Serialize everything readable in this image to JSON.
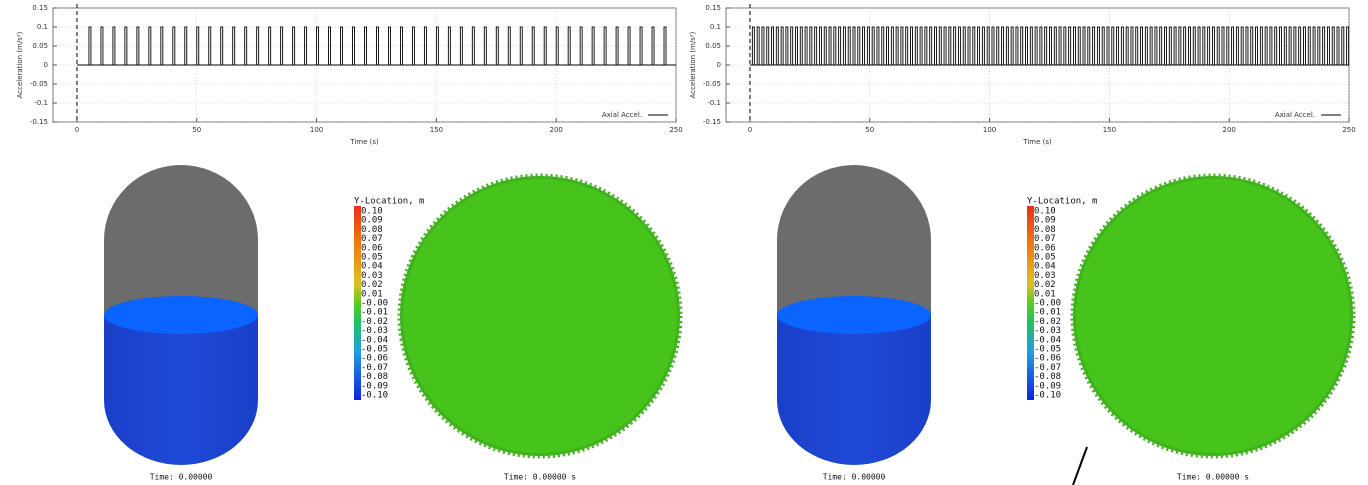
{
  "chart_data": [
    {
      "type": "pulse",
      "xlabel": "Time (s)",
      "ylabel": "Acceleration (m/s²)",
      "xlim": [
        -10,
        250
      ],
      "ylim": [
        -0.15,
        0.15
      ],
      "xticks": [
        0,
        50,
        100,
        150,
        200,
        250
      ],
      "yticks": [
        0.15,
        0.1,
        0.05,
        0,
        -0.05,
        -0.1,
        -0.15
      ],
      "grid": true,
      "legend": "lower right",
      "series": [
        {
          "name": "Axial Accel.",
          "color": "#000000",
          "x": [
            5,
            10,
            15,
            20,
            25,
            30,
            35,
            40,
            45,
            50,
            55,
            60,
            65,
            70,
            75,
            80,
            85,
            90,
            95,
            100,
            105,
            110,
            115,
            120,
            125,
            130,
            135,
            140,
            145,
            150,
            155,
            160,
            165,
            170,
            175,
            180,
            185,
            190,
            195,
            200,
            205,
            210,
            215,
            220,
            225,
            230,
            235,
            240,
            245
          ],
          "values": [
            0.1,
            0.1,
            0.1,
            0.1,
            0.1,
            0.1,
            0.1,
            0.1,
            0.1,
            0.1,
            0.1,
            0.1,
            0.1,
            0.1,
            0.1,
            0.1,
            0.1,
            0.1,
            0.1,
            0.1,
            0.1,
            0.1,
            0.1,
            0.1,
            0.1,
            0.1,
            0.1,
            0.1,
            0.1,
            0.1,
            0.1,
            0.1,
            0.1,
            0.1,
            0.1,
            0.1,
            0.1,
            0.1,
            0.1,
            0.1,
            0.1,
            0.1,
            0.1,
            0.1,
            0.1,
            0.1,
            0.1,
            0.1,
            0.1
          ]
        }
      ]
    },
    {
      "type": "pulse",
      "xlabel": "Time (s)",
      "ylabel": "Acceleration (m/s²)",
      "xlim": [
        -10,
        250
      ],
      "ylim": [
        -0.15,
        0.15
      ],
      "xticks": [
        0,
        50,
        100,
        150,
        200,
        250
      ],
      "yticks": [
        0.15,
        0.1,
        0.05,
        0,
        -0.05,
        -0.1,
        -0.15
      ],
      "grid": true,
      "legend": "lower right",
      "series": [
        {
          "name": "Axial Accel.",
          "color": "#000000",
          "x": [
            1,
            3,
            5,
            7,
            9,
            11,
            13,
            15,
            17,
            19,
            21,
            23,
            25,
            27,
            29,
            31,
            33,
            35,
            37,
            39,
            41,
            43,
            45,
            47,
            49,
            51,
            53,
            55,
            57,
            59,
            61,
            63,
            65,
            67,
            69,
            71,
            73,
            75,
            77,
            79,
            81,
            83,
            85,
            87,
            89,
            91,
            93,
            95,
            97,
            99,
            101,
            103,
            105,
            107,
            109,
            111,
            113,
            115,
            117,
            119,
            121,
            123,
            125,
            127,
            129,
            131,
            133,
            135,
            137,
            139,
            141,
            143,
            145,
            147,
            149,
            151,
            153,
            155,
            157,
            159,
            161,
            163,
            165,
            167,
            169,
            171,
            173,
            175,
            177,
            179,
            181,
            183,
            185,
            187,
            189,
            191,
            193,
            195,
            197,
            199,
            201,
            203,
            205,
            207,
            209,
            211,
            213,
            215,
            217,
            219,
            221,
            223,
            225,
            227,
            229,
            231,
            233,
            235,
            237,
            239,
            241,
            243,
            245,
            247,
            249
          ],
          "values": [
            0.1,
            0.1,
            0.1,
            0.1,
            0.1,
            0.1,
            0.1,
            0.1,
            0.1,
            0.1,
            0.1,
            0.1,
            0.1,
            0.1,
            0.1,
            0.1,
            0.1,
            0.1,
            0.1,
            0.1,
            0.1,
            0.1,
            0.1,
            0.1,
            0.1,
            0.1,
            0.1,
            0.1,
            0.1,
            0.1,
            0.1,
            0.1,
            0.1,
            0.1,
            0.1,
            0.1,
            0.1,
            0.1,
            0.1,
            0.1,
            0.1,
            0.1,
            0.1,
            0.1,
            0.1,
            0.1,
            0.1,
            0.1,
            0.1,
            0.1,
            0.1,
            0.1,
            0.1,
            0.1,
            0.1,
            0.1,
            0.1,
            0.1,
            0.1,
            0.1,
            0.1,
            0.1,
            0.1,
            0.1,
            0.1,
            0.1,
            0.1,
            0.1,
            0.1,
            0.1,
            0.1,
            0.1,
            0.1,
            0.1,
            0.1,
            0.1,
            0.1,
            0.1,
            0.1,
            0.1,
            0.1,
            0.1,
            0.1,
            0.1,
            0.1,
            0.1,
            0.1,
            0.1,
            0.1,
            0.1,
            0.1,
            0.1,
            0.1,
            0.1,
            0.1,
            0.1,
            0.1,
            0.1,
            0.1,
            0.1,
            0.1,
            0.1,
            0.1,
            0.1,
            0.1,
            0.1,
            0.1,
            0.1,
            0.1,
            0.1,
            0.1,
            0.1,
            0.1,
            0.1,
            0.1,
            0.1,
            0.1,
            0.1,
            0.1,
            0.1,
            0.1,
            0.1,
            0.1,
            0.1,
            0.1
          ]
        }
      ]
    }
  ],
  "panels": [
    {
      "colorbar": {
        "title": "Y-Location, m",
        "labels": [
          "0.10",
          "0.09",
          "0.08",
          "0.07",
          "0.06",
          "0.05",
          "0.04",
          "0.03",
          "0.02",
          "0.01",
          "-0.00",
          "-0.01",
          "-0.02",
          "-0.03",
          "-0.04",
          "-0.05",
          "-0.06",
          "-0.07",
          "-0.08",
          "-0.09",
          "-0.10"
        ]
      },
      "tank_time": "Time: 0.00000",
      "disk_time": "Time: 0.00000 s"
    },
    {
      "colorbar": {
        "title": "Y-Location, m",
        "labels": [
          "0.10",
          "0.09",
          "0.08",
          "0.07",
          "0.06",
          "0.05",
          "0.04",
          "0.03",
          "0.02",
          "0.01",
          "-0.00",
          "-0.01",
          "-0.02",
          "-0.03",
          "-0.04",
          "-0.05",
          "-0.06",
          "-0.07",
          "-0.08",
          "-0.09",
          "-0.10"
        ]
      },
      "tank_time": "Time: 0.00000",
      "disk_time": "Time: 0.00000 s"
    }
  ]
}
